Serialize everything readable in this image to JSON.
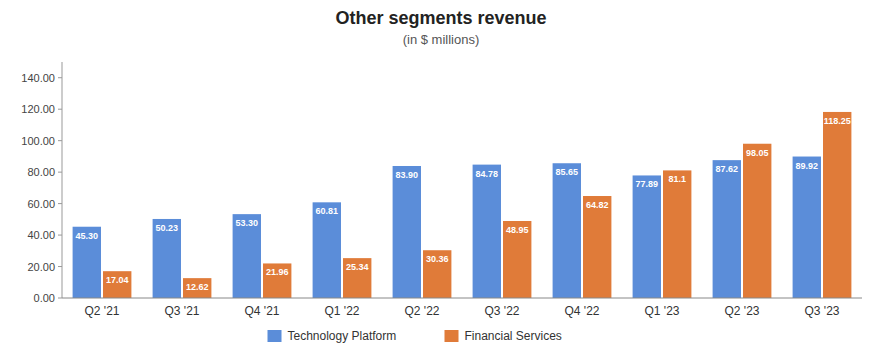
{
  "chart_data": {
    "type": "bar",
    "title": "Other segments revenue",
    "subtitle": "(in $ millions)",
    "categories": [
      "Q2 '21",
      "Q3 '21",
      "Q4 '21",
      "Q1 '22",
      "Q2 '22",
      "Q3 '22",
      "Q4 '22",
      "Q1 '23",
      "Q2 '23",
      "Q3 '23"
    ],
    "series": [
      {
        "name": "Technology Platform",
        "color": "#5b8dd9",
        "values": [
          45.3,
          50.23,
          53.3,
          60.81,
          83.9,
          84.78,
          85.65,
          77.89,
          87.62,
          89.92
        ],
        "value_labels": [
          "45.30",
          "50.23",
          "53.30",
          "60.81",
          "83.90",
          "84.78",
          "85.65",
          "77.89",
          "87.62",
          "89.92"
        ]
      },
      {
        "name": "Financial Services",
        "color": "#e07b39",
        "values": [
          17.04,
          12.62,
          21.96,
          25.34,
          30.36,
          48.95,
          64.82,
          81.1,
          98.05,
          118.25
        ],
        "value_labels": [
          "17.04",
          "12.62",
          "21.96",
          "25.34",
          "30.36",
          "48.95",
          "64.82",
          "81.1",
          "98.05",
          "118.25"
        ]
      }
    ],
    "ylim": [
      0,
      150
    ],
    "yticks": [
      {
        "value": 0,
        "label": "0.00"
      },
      {
        "value": 20,
        "label": "20.00"
      },
      {
        "value": 40,
        "label": "40.00"
      },
      {
        "value": 60,
        "label": "60.00"
      },
      {
        "value": 80,
        "label": "80.00"
      },
      {
        "value": 100,
        "label": "100.00"
      },
      {
        "value": 120,
        "label": "120.00"
      },
      {
        "value": 140,
        "label": "140.00"
      }
    ],
    "grid": false,
    "legend": "bottom",
    "data_labels": true
  }
}
